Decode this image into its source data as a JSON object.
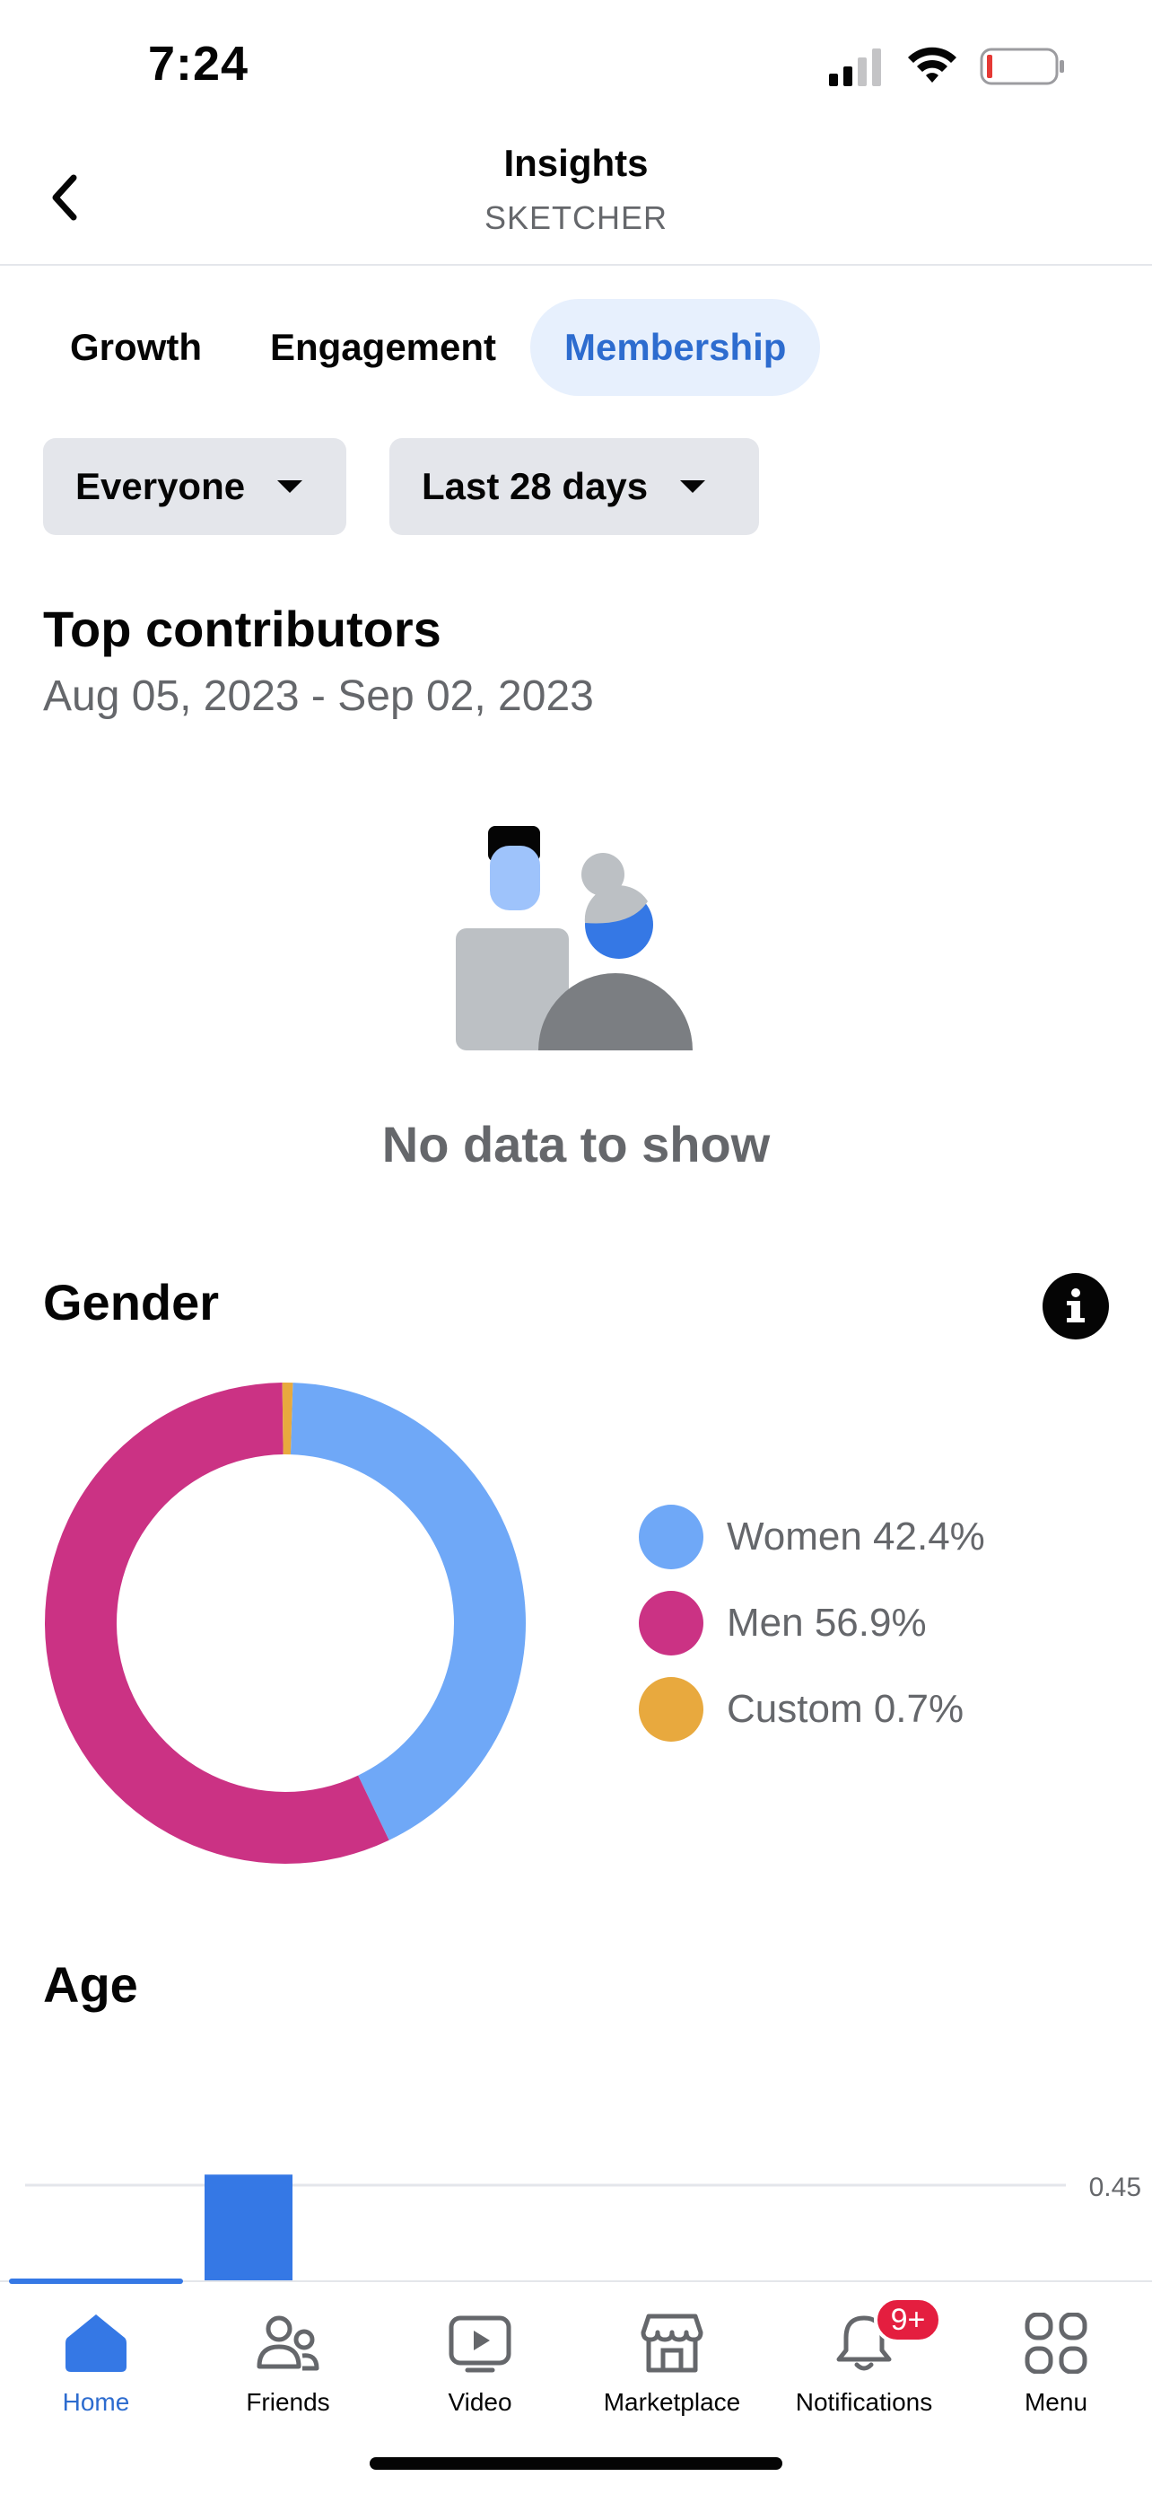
{
  "status_bar": {
    "time": "7:24"
  },
  "header": {
    "title": "Insights",
    "subtitle": "SKETCHER"
  },
  "tabs": [
    {
      "label": "Growth",
      "active": false
    },
    {
      "label": "Engagement",
      "active": false
    },
    {
      "label": "Membership",
      "active": true
    }
  ],
  "filters": {
    "audience": "Everyone",
    "range": "Last 28 days"
  },
  "top_contributors": {
    "title": "Top contributors",
    "dates": "Aug 05, 2023 - Sep 02, 2023",
    "empty_text": "No data to show"
  },
  "gender": {
    "title": "Gender",
    "legend": [
      {
        "label": "Women 42.4%",
        "color": "#6fa8f7"
      },
      {
        "label": "Men 56.9%",
        "color": "#cb3284"
      },
      {
        "label": "Custom 0.7%",
        "color": "#e8a93e"
      }
    ]
  },
  "age": {
    "title": "Age",
    "gridline_label": "0.45"
  },
  "chart_data": [
    {
      "type": "pie",
      "style": "donut",
      "categories": [
        "Women",
        "Men",
        "Custom"
      ],
      "values": [
        42.4,
        56.9,
        0.7
      ],
      "colors": [
        "#6fa8f7",
        "#cb3284",
        "#e8a93e"
      ]
    },
    {
      "type": "bar",
      "gridlines": [
        0.45
      ],
      "series": [
        {
          "values": [
            0,
            0.5
          ]
        }
      ],
      "color": "#3578e5"
    }
  ],
  "tabbar": {
    "items": [
      {
        "label": "Home",
        "active": true
      },
      {
        "label": "Friends",
        "active": false
      },
      {
        "label": "Video",
        "active": false
      },
      {
        "label": "Marketplace",
        "active": false
      },
      {
        "label": "Notifications",
        "active": false,
        "badge": "9+"
      },
      {
        "label": "Menu",
        "active": false
      }
    ]
  }
}
